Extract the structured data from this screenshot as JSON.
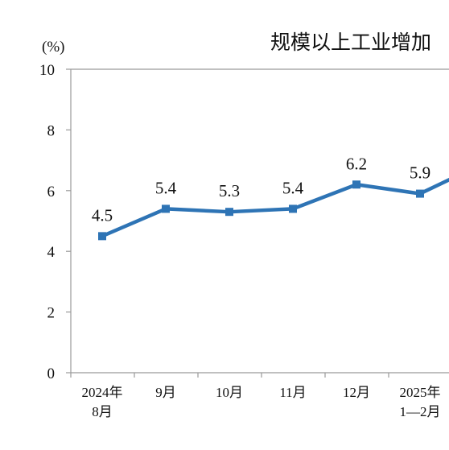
{
  "chart_data": {
    "type": "line",
    "title": "规模以上工业增加",
    "unit_label": "(%)",
    "ylim": [
      0,
      10
    ],
    "yticks": [
      "0",
      "2",
      "4",
      "6",
      "8",
      "10"
    ],
    "categories": [
      [
        "2024年",
        "8月"
      ],
      [
        "9月"
      ],
      [
        "10月"
      ],
      [
        "11月"
      ],
      [
        "12月"
      ],
      [
        "2025年",
        "1—2月"
      ]
    ],
    "series": [
      {
        "values": [
          4.5,
          5.4,
          5.3,
          5.4,
          6.2,
          5.9
        ],
        "labels": [
          "4.5",
          "5.4",
          "5.3",
          "5.4",
          "6.2",
          "5.9"
        ],
        "partial_next_value": 6.9,
        "color": "#2e74b5"
      }
    ],
    "grid": false,
    "legend": "none"
  }
}
